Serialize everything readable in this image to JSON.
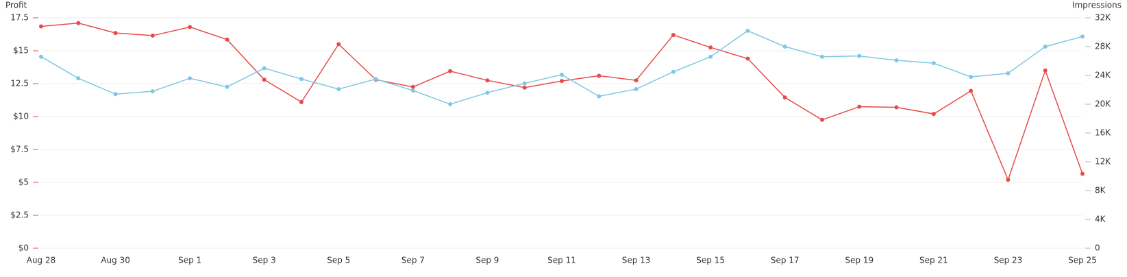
{
  "chart_data": {
    "type": "line",
    "y_label": "Profit",
    "y2_label": "Impressions",
    "categories": [
      "Aug 28",
      null,
      "Aug 30",
      null,
      "Sep 1",
      null,
      "Sep 3",
      null,
      "Sep 5",
      null,
      "Sep 7",
      null,
      "Sep 9",
      null,
      "Sep 11",
      null,
      "Sep 13",
      null,
      "Sep 15",
      null,
      "Sep 17",
      null,
      "Sep 19",
      null,
      "Sep 21",
      null,
      "Sep 23",
      null,
      "Sep 25"
    ],
    "series": [
      {
        "name": "Profit",
        "color": "#e84a4a",
        "axis": "y",
        "values": [
          16.85,
          17.1,
          16.35,
          16.15,
          16.8,
          15.85,
          12.8,
          11.1,
          15.5,
          12.8,
          12.25,
          13.45,
          12.75,
          12.2,
          12.7,
          13.1,
          12.75,
          16.2,
          15.25,
          14.4,
          11.45,
          9.75,
          10.75,
          10.7,
          10.2,
          11.95,
          5.2,
          13.5,
          5.65
        ]
      },
      {
        "name": "Impressions",
        "color": "#7ec8e3",
        "axis": "y2",
        "values": [
          26600,
          23600,
          21400,
          21800,
          23600,
          22400,
          25000,
          23500,
          22100,
          23500,
          21900,
          20000,
          21600,
          22900,
          24100,
          21100,
          22100,
          24500,
          26600,
          30200,
          28000,
          26600,
          26700,
          26100,
          25700,
          23800,
          24300,
          28000,
          29400
        ]
      }
    ],
    "ylim": [
      0,
      17.5
    ],
    "yticks": [
      {
        "value": 0,
        "label": "$0"
      },
      {
        "value": 2.5,
        "label": "$2.5"
      },
      {
        "value": 5,
        "label": "$5"
      },
      {
        "value": 7.5,
        "label": "$7.5"
      },
      {
        "value": 10,
        "label": "$10"
      },
      12.5,
      {
        "value": 15,
        "label": "$15"
      },
      17.5
    ],
    "y2lim": [
      0,
      32000
    ],
    "y2ticks": [
      0,
      {
        "value": 4000,
        "label": "4K"
      },
      {
        "value": 8000,
        "label": "8K"
      },
      {
        "value": 12000,
        "label": "12K"
      },
      {
        "value": 16000,
        "label": "16K"
      },
      {
        "value": 20000,
        "label": "20K"
      },
      {
        "value": 24000,
        "label": "24K"
      },
      {
        "value": 28000,
        "label": "28K"
      },
      {
        "value": 32000,
        "label": "32K"
      }
    ],
    "grid": true
  }
}
